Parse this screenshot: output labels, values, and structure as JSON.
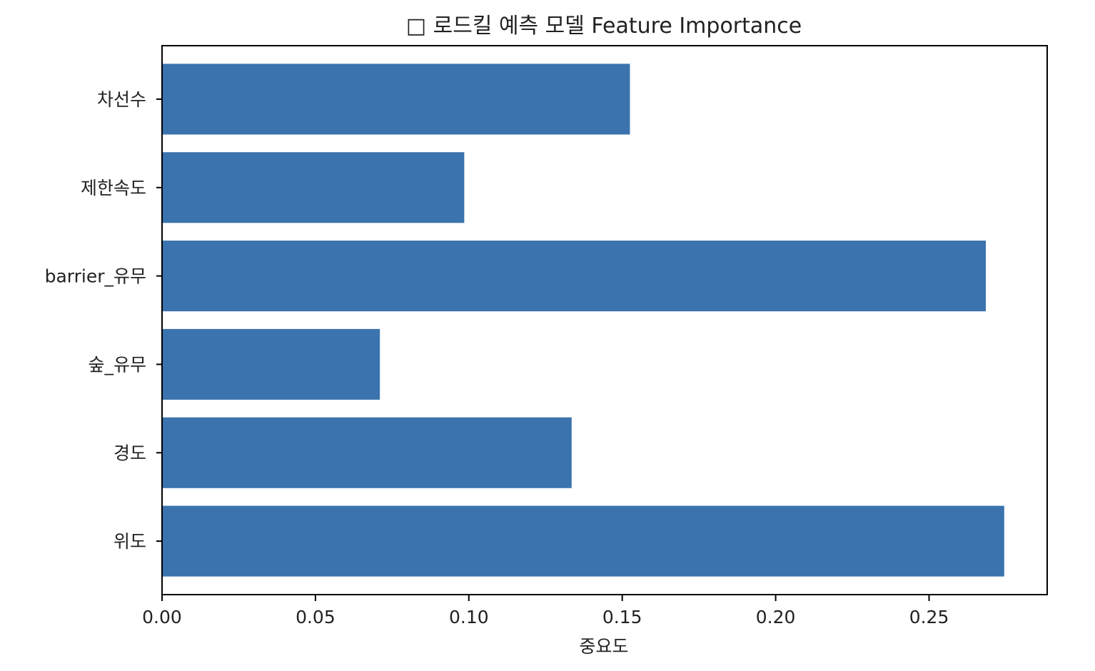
{
  "chart_data": {
    "type": "bar",
    "orientation": "horizontal",
    "title": "□ 로드킬 예측 모델 Feature Importance",
    "xlabel": "중요도",
    "ylabel": "",
    "categories": [
      "차선수",
      "제한속도",
      "barrier_유무",
      "숲_유무",
      "경도",
      "위도"
    ],
    "values": [
      0.1525,
      0.0985,
      0.2685,
      0.071,
      0.1335,
      0.2745
    ],
    "xlim": [
      0.0,
      0.2885
    ],
    "xticks": [
      0.0,
      0.05,
      0.1,
      0.15,
      0.2,
      0.25
    ],
    "xtick_labels": [
      "0.00",
      "0.05",
      "0.10",
      "0.15",
      "0.20",
      "0.25"
    ],
    "bar_color": "#3a73ad",
    "grid": false,
    "legend": null
  }
}
